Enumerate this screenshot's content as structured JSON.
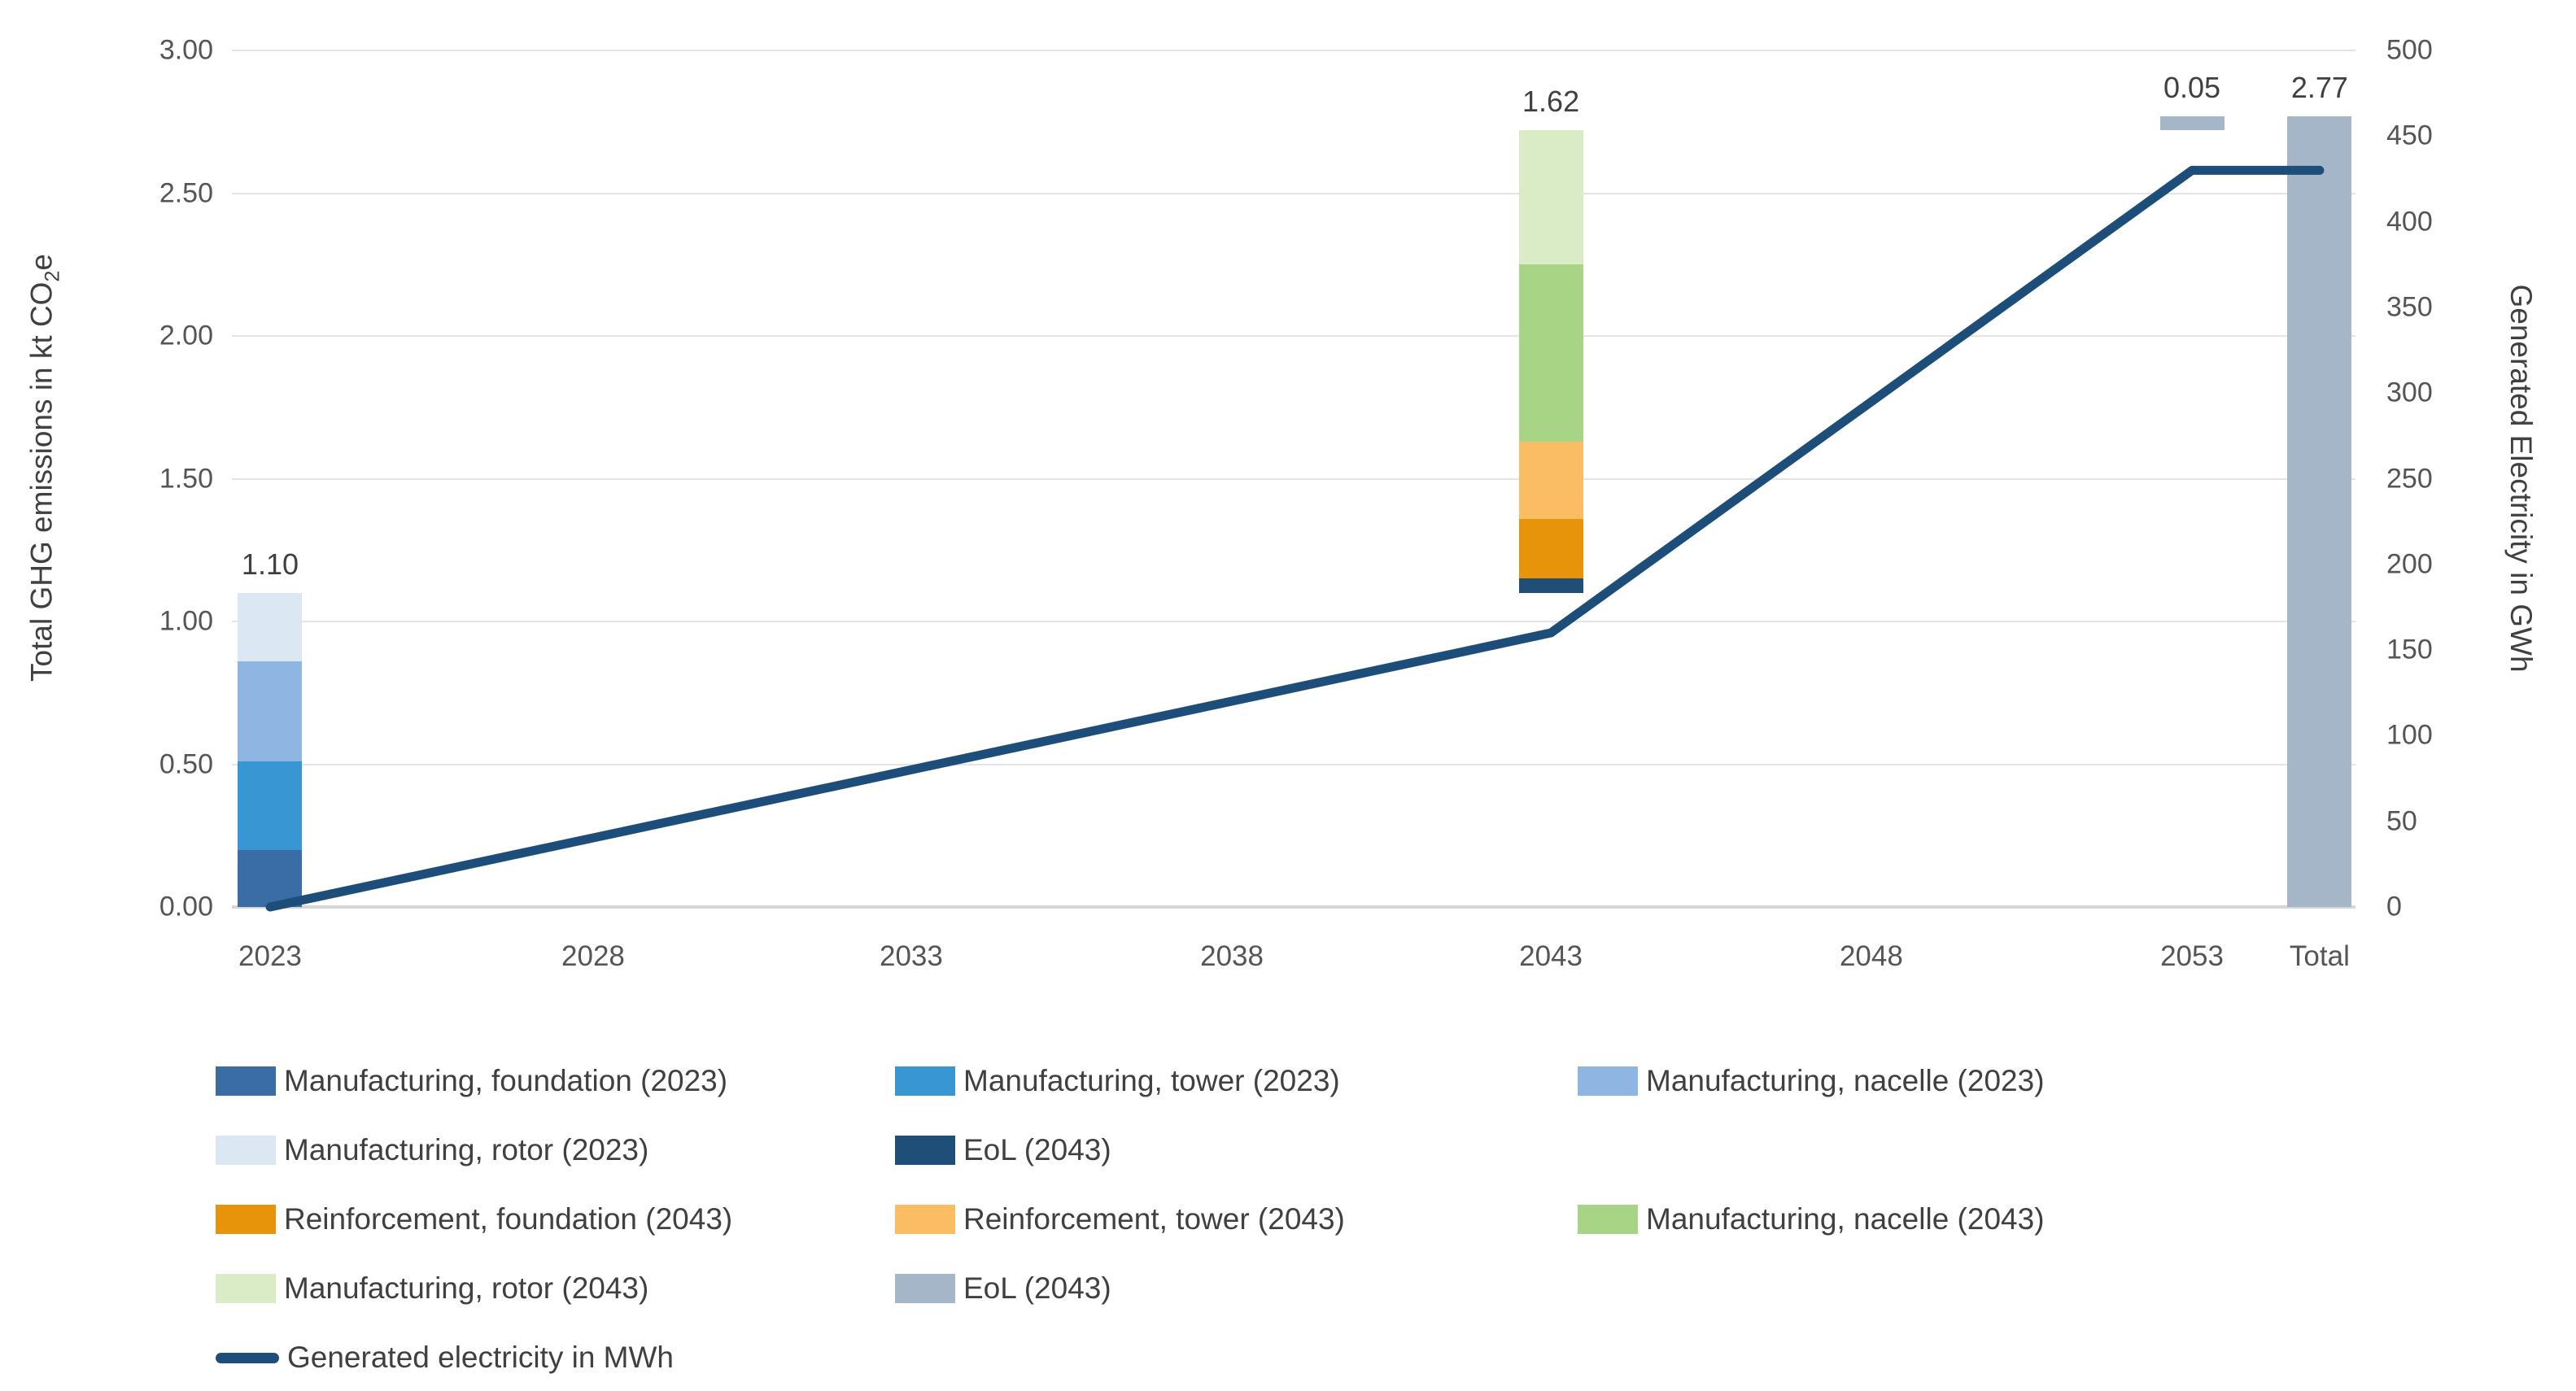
{
  "chart_data": {
    "type": "combo-stacked-bar-line",
    "subtype": "waterfall",
    "title": "",
    "grid": true,
    "legend_position": "bottom-left",
    "left_axis": {
      "label_prefix": "Total GHG emissions in kt CO",
      "label_sub": "2",
      "label_suffix": "e",
      "min": 0,
      "max": 3,
      "ticks": [
        "3.00",
        "2.50",
        "2.00",
        "1.50",
        "1.00",
        "0.50",
        "0.00"
      ]
    },
    "right_axis": {
      "label": "Generated Electricity in GWh",
      "min": 0,
      "max": 500,
      "ticks": [
        "500",
        "450",
        "400",
        "350",
        "300",
        "250",
        "200",
        "150",
        "100",
        "50",
        "0"
      ]
    },
    "x_axis": {
      "categories": [
        "2023",
        "2028",
        "2033",
        "2038",
        "2043",
        "2048",
        "2053",
        "Total"
      ],
      "positions_pct": [
        1.8,
        17.01,
        31.99,
        47.09,
        62.11,
        77.2,
        92.3,
        98.31
      ]
    },
    "bars": [
      {
        "category": "2023",
        "label": "1.10",
        "base": 0,
        "segments": [
          {
            "name": "Manufacturing, foundation (2023)",
            "value": 0.2,
            "color": "#3a6ca6"
          },
          {
            "name": "Manufacturing, tower (2023)",
            "value": 0.31,
            "color": "#3897d3"
          },
          {
            "name": "Manufacturing, nacelle (2023)",
            "value": 0.35,
            "color": "#8fb6e2"
          },
          {
            "name": "Manufacturing, rotor (2023)",
            "value": 0.24,
            "color": "#dbe7f3"
          }
        ]
      },
      {
        "category": "2043",
        "label": "1.62",
        "base": 1.1,
        "segments": [
          {
            "name": "EoL (2043)",
            "value": 0.05,
            "color": "#1f4e79"
          },
          {
            "name": "Reinforcement, foundation (2043)",
            "value": 0.21,
            "color": "#e8940a"
          },
          {
            "name": "Reinforcement, tower (2043)",
            "value": 0.27,
            "color": "#fbbd63"
          },
          {
            "name": "Manufacturing, nacelle (2043)",
            "value": 0.62,
            "color": "#a8d485"
          },
          {
            "name": "Manufacturing, rotor (2043)",
            "value": 0.47,
            "color": "#d9ecc6"
          }
        ]
      },
      {
        "category": "2053",
        "label": "0.05",
        "base": 2.72,
        "segments": [
          {
            "name": "EoL (2043)",
            "value": 0.05,
            "color": "#a4b6c8"
          }
        ]
      },
      {
        "category": "Total",
        "label": "2.77",
        "base": 0,
        "segments": [
          {
            "name": "Total",
            "value": 2.77,
            "color": "#a4b6c8"
          }
        ]
      }
    ],
    "line": {
      "name": "Generated electricity in MWh",
      "color": "#1d4e79",
      "points": [
        {
          "x": "2023",
          "value": 0
        },
        {
          "x": "2043",
          "value": 160
        },
        {
          "x": "2053",
          "value": 430
        },
        {
          "x": "Total",
          "value": 430
        }
      ]
    },
    "legend_rows": [
      [
        {
          "label": "Manufacturing, foundation (2023)",
          "color": "#3a6ca6",
          "type": "box"
        },
        {
          "label": "Manufacturing, tower (2023)",
          "color": "#3897d3",
          "type": "box"
        },
        {
          "label": "Manufacturing, nacelle (2023)",
          "color": "#8fb6e2",
          "type": "box"
        }
      ],
      [
        {
          "label": "Manufacturing, rotor (2023)",
          "color": "#dbe7f3",
          "type": "box"
        },
        {
          "label": "EoL (2043)",
          "color": "#1f4e79",
          "type": "box"
        }
      ],
      [
        {
          "label": "Reinforcement, foundation (2043)",
          "color": "#e8940a",
          "type": "box"
        },
        {
          "label": "Reinforcement, tower (2043)",
          "color": "#fbbd63",
          "type": "box"
        },
        {
          "label": "Manufacturing, nacelle (2043)",
          "color": "#a8d485",
          "type": "box"
        }
      ],
      [
        {
          "label": "Manufacturing, rotor (2043)",
          "color": "#d9ecc6",
          "type": "box"
        },
        {
          "label": "EoL (2043)",
          "color": "#a4b6c8",
          "type": "box"
        }
      ],
      [
        {
          "label": "Generated electricity in MWh",
          "color": "#1d4e79",
          "type": "line"
        }
      ]
    ]
  }
}
